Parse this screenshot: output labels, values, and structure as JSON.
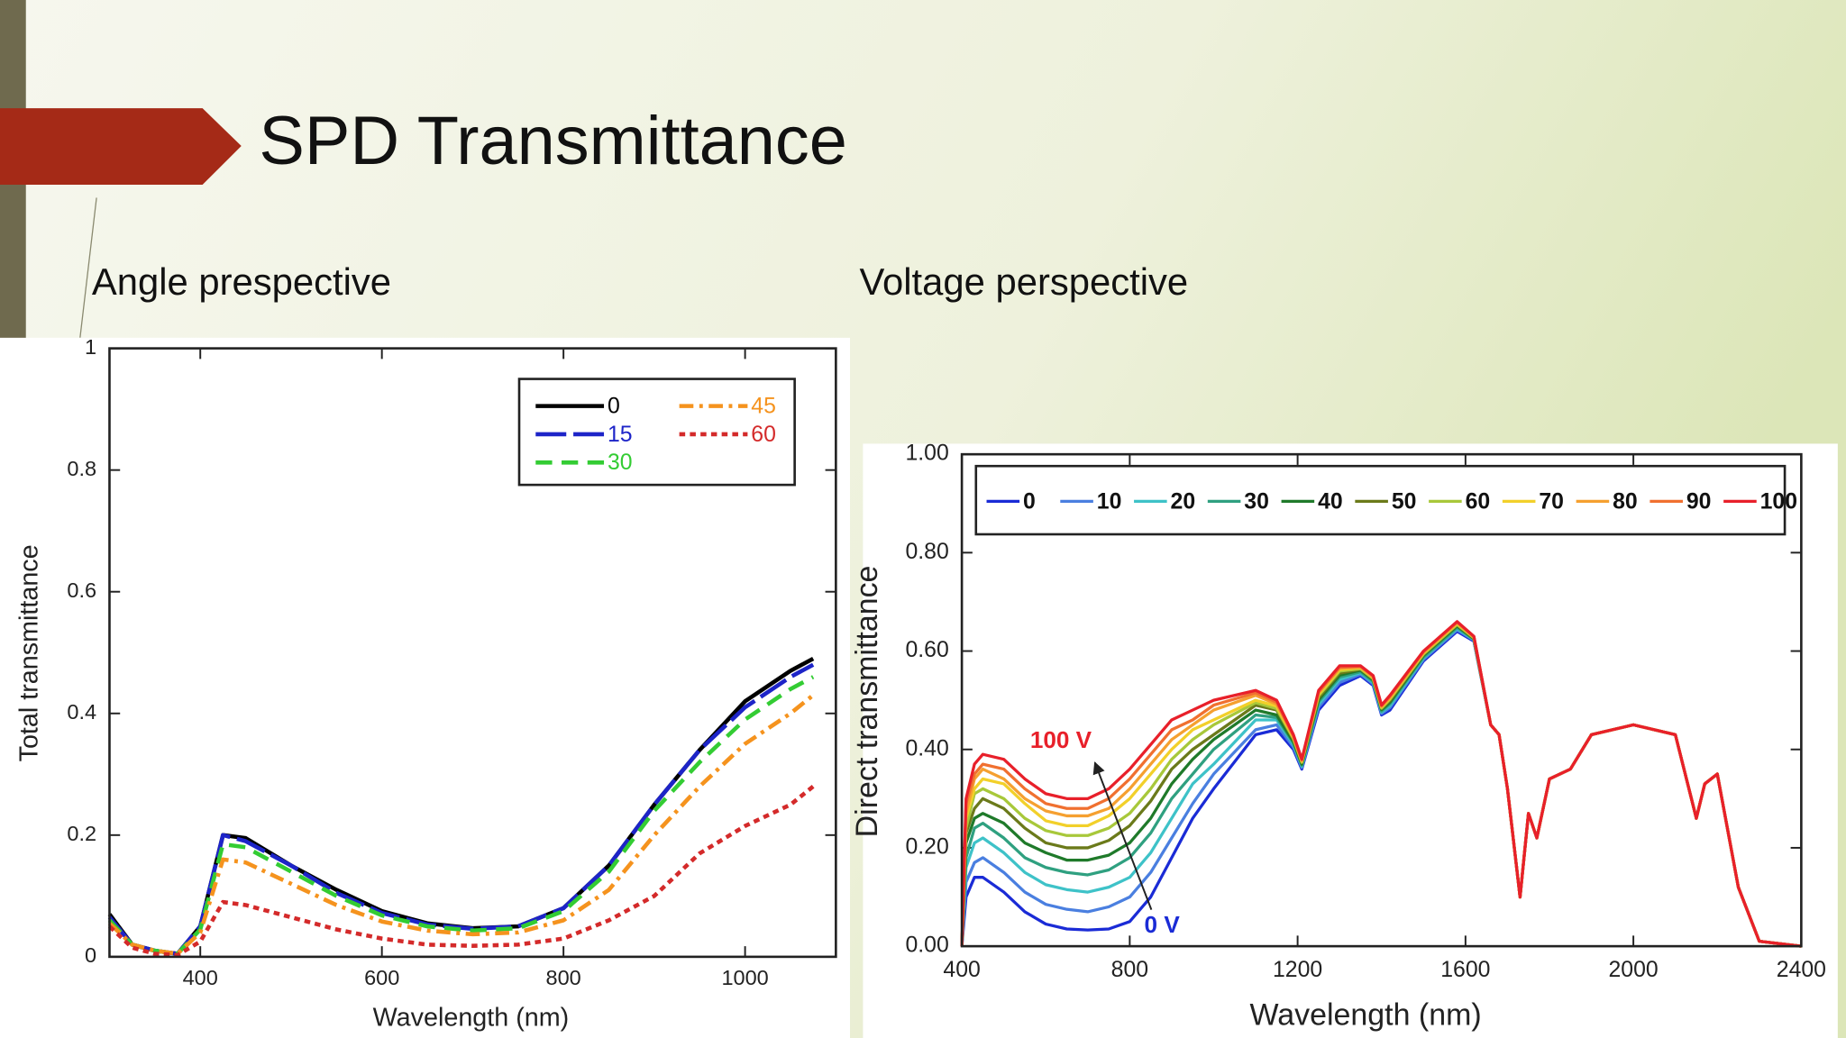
{
  "slide": {
    "title": "SPD Transmittance"
  },
  "chart_data": [
    {
      "type": "line",
      "title": "Angle prespective",
      "x_label": "Wavelength (nm)",
      "y_label": "Total transmittance",
      "xlim": [
        300,
        1100
      ],
      "xticks": [
        400,
        600,
        800,
        1000
      ],
      "ylim": [
        0,
        1
      ],
      "yticks": [
        0,
        0.2,
        0.4,
        0.6,
        0.8,
        1
      ],
      "x": [
        300,
        325,
        350,
        375,
        400,
        425,
        450,
        500,
        550,
        600,
        650,
        700,
        750,
        800,
        850,
        900,
        950,
        1000,
        1050,
        1075
      ],
      "series": [
        {
          "name": "0",
          "color": "#000000",
          "style": "solid",
          "values": [
            0.07,
            0.02,
            0.01,
            0.005,
            0.05,
            0.2,
            0.195,
            0.15,
            0.11,
            0.075,
            0.055,
            0.047,
            0.05,
            0.08,
            0.15,
            0.25,
            0.34,
            0.42,
            0.47,
            0.49
          ]
        },
        {
          "name": "15",
          "color": "#1d24c8",
          "style": "longdash",
          "values": [
            0.065,
            0.02,
            0.01,
            0.005,
            0.05,
            0.2,
            0.19,
            0.15,
            0.105,
            0.072,
            0.053,
            0.046,
            0.05,
            0.08,
            0.15,
            0.25,
            0.34,
            0.41,
            0.46,
            0.48
          ]
        },
        {
          "name": "30",
          "color": "#33cc33",
          "style": "dashed",
          "values": [
            0.06,
            0.02,
            0.01,
            0.005,
            0.045,
            0.185,
            0.18,
            0.14,
            0.1,
            0.068,
            0.05,
            0.043,
            0.047,
            0.075,
            0.14,
            0.24,
            0.32,
            0.39,
            0.44,
            0.46
          ]
        },
        {
          "name": "45",
          "color": "#f5931e",
          "style": "dashdot",
          "values": [
            0.055,
            0.02,
            0.01,
            0.005,
            0.04,
            0.16,
            0.155,
            0.12,
            0.085,
            0.058,
            0.043,
            0.037,
            0.04,
            0.06,
            0.11,
            0.2,
            0.28,
            0.35,
            0.4,
            0.43
          ]
        },
        {
          "name": "60",
          "color": "#d42a2a",
          "style": "dotted",
          "values": [
            0.05,
            0.015,
            0.005,
            0.003,
            0.025,
            0.09,
            0.085,
            0.065,
            0.045,
            0.03,
            0.02,
            0.018,
            0.02,
            0.03,
            0.06,
            0.1,
            0.17,
            0.215,
            0.25,
            0.28
          ]
        }
      ]
    },
    {
      "type": "line",
      "title": "Voltage perspective",
      "x_label": "Wavelength (nm)",
      "y_label": "Direct transmittance",
      "xlim": [
        400,
        2400
      ],
      "xticks": [
        400,
        800,
        1200,
        1600,
        2000,
        2400
      ],
      "ylim": [
        0,
        1
      ],
      "yticks": [
        {
          "value": 0,
          "label": "0.00"
        },
        {
          "value": 0.2,
          "label": "0.20"
        },
        {
          "value": 0.4,
          "label": "0.40"
        },
        {
          "value": 0.6,
          "label": "0.60"
        },
        {
          "value": 0.8,
          "label": "0.80"
        },
        {
          "value": 1,
          "label": "1.00"
        }
      ],
      "x": [
        400,
        410,
        430,
        450,
        500,
        550,
        600,
        650,
        700,
        750,
        800,
        850,
        900,
        950,
        1000,
        1100,
        1150,
        1190,
        1210,
        1250,
        1300,
        1350,
        1380,
        1400,
        1420,
        1500,
        1580,
        1620,
        1660,
        1680,
        1700,
        1730,
        1750,
        1770,
        1800,
        1850,
        1900,
        2000,
        2100,
        2150,
        2170,
        2200,
        2250,
        2300,
        2400
      ],
      "series": [
        {
          "name": "0",
          "color": "#1a2bd6",
          "values": [
            0,
            0.1,
            0.14,
            0.14,
            0.11,
            0.07,
            0.045,
            0.035,
            0.033,
            0.035,
            0.05,
            0.1,
            0.18,
            0.26,
            0.32,
            0.43,
            0.44,
            0.4,
            0.36,
            0.48,
            0.53,
            0.55,
            0.53,
            0.47,
            0.48,
            0.58,
            0.64,
            0.62,
            0.45,
            0.43,
            0.32,
            0.1,
            0.27,
            0.22,
            0.34,
            0.36,
            0.43,
            0.45,
            0.43,
            0.26,
            0.33,
            0.35,
            0.12,
            0.01,
            0
          ]
        },
        {
          "name": "10",
          "color": "#4a7fe0",
          "values": [
            0,
            0.13,
            0.17,
            0.18,
            0.15,
            0.11,
            0.085,
            0.075,
            0.07,
            0.08,
            0.1,
            0.15,
            0.22,
            0.29,
            0.35,
            0.44,
            0.45,
            0.405,
            0.363,
            0.486,
            0.536,
            0.553,
            0.533,
            0.473,
            0.485,
            0.583,
            0.643,
            0.622,
            0.45,
            0.43,
            0.32,
            0.1,
            0.27,
            0.22,
            0.34,
            0.36,
            0.43,
            0.45,
            0.43,
            0.26,
            0.33,
            0.35,
            0.12,
            0.01,
            0
          ]
        },
        {
          "name": "20",
          "color": "#3ec2c8",
          "values": [
            0,
            0.16,
            0.21,
            0.22,
            0.19,
            0.15,
            0.125,
            0.115,
            0.11,
            0.12,
            0.14,
            0.19,
            0.26,
            0.33,
            0.37,
            0.46,
            0.46,
            0.41,
            0.366,
            0.492,
            0.542,
            0.556,
            0.536,
            0.476,
            0.489,
            0.586,
            0.646,
            0.623,
            0.45,
            0.43,
            0.32,
            0.1,
            0.27,
            0.22,
            0.34,
            0.36,
            0.43,
            0.45,
            0.43,
            0.26,
            0.33,
            0.35,
            0.12,
            0.01,
            0
          ]
        },
        {
          "name": "30",
          "color": "#2fa080",
          "values": [
            0,
            0.18,
            0.24,
            0.25,
            0.22,
            0.18,
            0.16,
            0.15,
            0.145,
            0.155,
            0.18,
            0.23,
            0.3,
            0.35,
            0.4,
            0.47,
            0.465,
            0.413,
            0.368,
            0.497,
            0.547,
            0.558,
            0.538,
            0.478,
            0.493,
            0.588,
            0.648,
            0.624,
            0.45,
            0.43,
            0.32,
            0.1,
            0.27,
            0.22,
            0.34,
            0.36,
            0.43,
            0.45,
            0.43,
            0.26,
            0.33,
            0.35,
            0.12,
            0.01,
            0
          ]
        },
        {
          "name": "40",
          "color": "#1f7a2a",
          "values": [
            0,
            0.21,
            0.26,
            0.27,
            0.25,
            0.21,
            0.19,
            0.175,
            0.175,
            0.185,
            0.21,
            0.26,
            0.33,
            0.38,
            0.42,
            0.48,
            0.47,
            0.416,
            0.37,
            0.501,
            0.551,
            0.561,
            0.541,
            0.481,
            0.496,
            0.591,
            0.651,
            0.625,
            0.45,
            0.43,
            0.32,
            0.1,
            0.27,
            0.22,
            0.34,
            0.36,
            0.43,
            0.45,
            0.43,
            0.26,
            0.33,
            0.35,
            0.12,
            0.01,
            0
          ]
        },
        {
          "name": "50",
          "color": "#6b7a1a",
          "values": [
            0,
            0.23,
            0.28,
            0.3,
            0.28,
            0.24,
            0.21,
            0.2,
            0.2,
            0.215,
            0.245,
            0.295,
            0.36,
            0.4,
            0.43,
            0.49,
            0.48,
            0.42,
            0.373,
            0.505,
            0.555,
            0.563,
            0.543,
            0.483,
            0.499,
            0.593,
            0.653,
            0.626,
            0.45,
            0.43,
            0.32,
            0.1,
            0.27,
            0.22,
            0.34,
            0.36,
            0.43,
            0.45,
            0.43,
            0.26,
            0.33,
            0.35,
            0.12,
            0.01,
            0
          ]
        },
        {
          "name": "60",
          "color": "#a8c83a",
          "values": [
            0,
            0.24,
            0.31,
            0.32,
            0.3,
            0.26,
            0.235,
            0.225,
            0.225,
            0.24,
            0.27,
            0.32,
            0.38,
            0.42,
            0.45,
            0.495,
            0.483,
            0.422,
            0.374,
            0.509,
            0.559,
            0.564,
            0.544,
            0.484,
            0.502,
            0.594,
            0.654,
            0.627,
            0.45,
            0.43,
            0.32,
            0.1,
            0.27,
            0.22,
            0.34,
            0.36,
            0.43,
            0.45,
            0.43,
            0.26,
            0.33,
            0.35,
            0.12,
            0.01,
            0
          ]
        },
        {
          "name": "70",
          "color": "#f2d02a",
          "values": [
            0,
            0.26,
            0.32,
            0.34,
            0.33,
            0.29,
            0.255,
            0.245,
            0.245,
            0.265,
            0.3,
            0.35,
            0.4,
            0.44,
            0.46,
            0.5,
            0.488,
            0.424,
            0.376,
            0.512,
            0.562,
            0.566,
            0.546,
            0.486,
            0.504,
            0.596,
            0.656,
            0.628,
            0.45,
            0.43,
            0.32,
            0.1,
            0.27,
            0.22,
            0.34,
            0.36,
            0.43,
            0.45,
            0.43,
            0.26,
            0.33,
            0.35,
            0.12,
            0.01,
            0
          ]
        },
        {
          "name": "80",
          "color": "#f5a030",
          "values": [
            0,
            0.27,
            0.34,
            0.36,
            0.34,
            0.3,
            0.275,
            0.265,
            0.265,
            0.28,
            0.32,
            0.37,
            0.42,
            0.45,
            0.48,
            0.51,
            0.492,
            0.426,
            0.377,
            0.515,
            0.565,
            0.567,
            0.547,
            0.487,
            0.506,
            0.597,
            0.657,
            0.629,
            0.45,
            0.43,
            0.32,
            0.1,
            0.27,
            0.22,
            0.34,
            0.36,
            0.43,
            0.45,
            0.43,
            0.26,
            0.33,
            0.35,
            0.12,
            0.01,
            0
          ]
        },
        {
          "name": "90",
          "color": "#f07030",
          "values": [
            0,
            0.29,
            0.35,
            0.37,
            0.36,
            0.32,
            0.29,
            0.28,
            0.28,
            0.3,
            0.34,
            0.39,
            0.44,
            0.46,
            0.49,
            0.515,
            0.496,
            0.428,
            0.379,
            0.517,
            0.567,
            0.569,
            0.549,
            0.489,
            0.508,
            0.599,
            0.659,
            0.629,
            0.45,
            0.43,
            0.32,
            0.1,
            0.27,
            0.22,
            0.34,
            0.36,
            0.43,
            0.45,
            0.43,
            0.26,
            0.33,
            0.35,
            0.12,
            0.01,
            0
          ]
        },
        {
          "name": "100",
          "color": "#e8202a",
          "values": [
            0,
            0.3,
            0.37,
            0.39,
            0.38,
            0.34,
            0.31,
            0.3,
            0.3,
            0.32,
            0.36,
            0.41,
            0.46,
            0.48,
            0.5,
            0.52,
            0.5,
            0.43,
            0.38,
            0.52,
            0.57,
            0.57,
            0.55,
            0.49,
            0.51,
            0.6,
            0.66,
            0.63,
            0.45,
            0.43,
            0.32,
            0.1,
            0.27,
            0.22,
            0.34,
            0.36,
            0.43,
            0.45,
            0.43,
            0.26,
            0.33,
            0.35,
            0.12,
            0.01,
            0
          ]
        }
      ],
      "annotations": [
        {
          "text": "100 V",
          "color": "#e8202a"
        },
        {
          "text": "0 V",
          "color": "#1a2bd6"
        }
      ]
    }
  ]
}
